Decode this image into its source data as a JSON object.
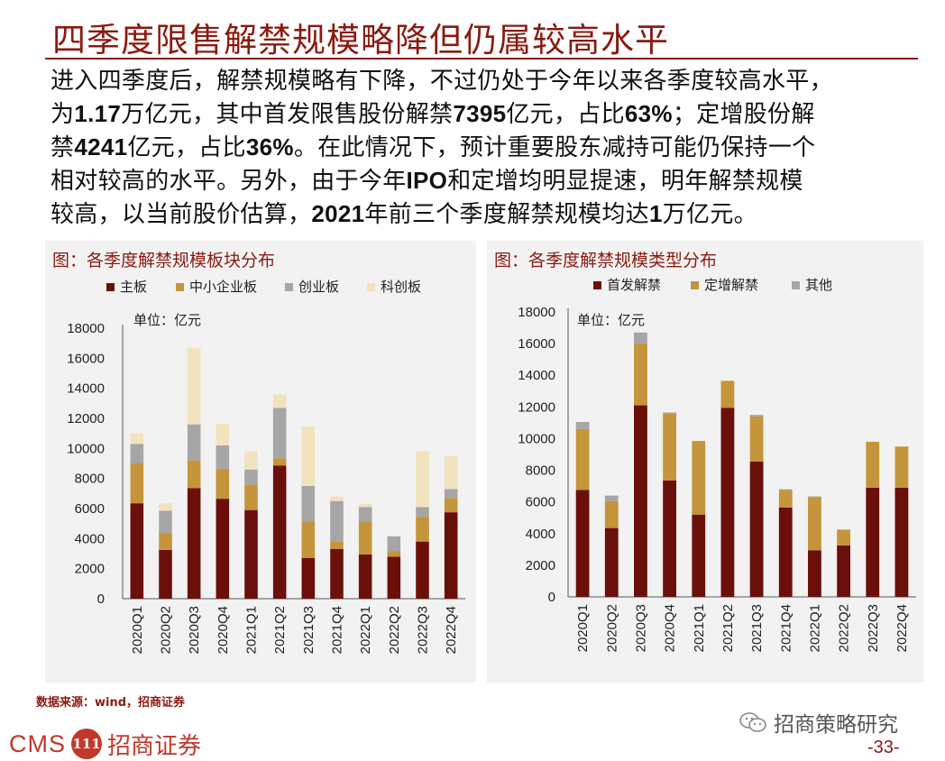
{
  "title": "四季度限售解禁规模略降但仍属较高水平",
  "body": {
    "l1": "进入四季度后，解禁规模略有下降，不过仍处于今年以来各季度较高水平，",
    "l2a": "为",
    "l2b": "1.17",
    "l2c": "万亿元，其中首发限售股份解禁",
    "l2d": "7395",
    "l2e": "亿元，占比",
    "l2f": "63%",
    "l2g": "；定增股份解",
    "l3a": "禁",
    "l3b": "4241",
    "l3c": "亿元，占比",
    "l3d": "36%",
    "l3e": "。在此情况下，预计重要股东减持可能仍保持一个",
    "l4a": "相对较高的水平。另外，由于今年",
    "l4b": "IPO",
    "l4c": "和定增均明显提速，明年解禁规模",
    "l5a": "较高，以当前股价估算，",
    "l5b": "2021",
    "l5c": "年前三个季度解禁规模均达",
    "l5d": "1",
    "l5e": "万亿元。"
  },
  "source": "数据来源：wind，招商证券",
  "logo": {
    "text": "CMS",
    "badge": "111",
    "name": "招商证券"
  },
  "wechat_label": "招商策略研究",
  "page_number": "-33-",
  "colors": {
    "main": "#6b0f0a",
    "sme": "#c4953a",
    "gem": "#a6a6a6",
    "star": "#f1e3be",
    "brand": "#8b1a10"
  },
  "chart_data": [
    {
      "type": "bar",
      "stacked": true,
      "title": "图：各季度解禁规模板块分布",
      "unit_label": "单位：亿元",
      "categories": [
        "2020Q1",
        "2020Q2",
        "2020Q3",
        "2020Q4",
        "2021Q1",
        "2021Q2",
        "2021Q3",
        "2021Q4",
        "2022Q1",
        "2022Q2",
        "2022Q3",
        "2022Q4"
      ],
      "ylim": [
        0,
        18000
      ],
      "yticks": [
        0,
        2000,
        4000,
        6000,
        8000,
        10000,
        12000,
        14000,
        16000,
        18000
      ],
      "series": [
        {
          "name": "主板",
          "color": "#6b0f0a",
          "values": [
            6350,
            3250,
            7350,
            6650,
            5900,
            8850,
            2700,
            3300,
            2950,
            2800,
            3800,
            5750
          ]
        },
        {
          "name": "中小企业板",
          "color": "#c4953a",
          "values": [
            2650,
            1100,
            1850,
            2000,
            1700,
            500,
            2400,
            500,
            2200,
            350,
            1650,
            950
          ]
        },
        {
          "name": "创业板",
          "color": "#a6a6a6",
          "values": [
            1300,
            1500,
            2400,
            1550,
            1000,
            3350,
            2400,
            2700,
            950,
            1000,
            650,
            600
          ]
        },
        {
          "name": "科创板",
          "color": "#f1e3be",
          "values": [
            700,
            500,
            5100,
            1450,
            1200,
            900,
            3950,
            300,
            200,
            50,
            3700,
            2200
          ]
        }
      ]
    },
    {
      "type": "bar",
      "stacked": true,
      "title": "图：各季度解禁规模类型分布",
      "unit_label": "单位：亿元",
      "categories": [
        "2020Q1",
        "2020Q2",
        "2020Q3",
        "2020Q4",
        "2021Q1",
        "2021Q2",
        "2021Q3",
        "2021Q4",
        "2022Q1",
        "2022Q2",
        "2022Q3",
        "2022Q4"
      ],
      "ylim": [
        0,
        18000
      ],
      "yticks": [
        0,
        2000,
        4000,
        6000,
        8000,
        10000,
        12000,
        14000,
        16000,
        18000
      ],
      "series": [
        {
          "name": "首发解禁",
          "color": "#6b0f0a",
          "values": [
            6750,
            4350,
            12100,
            7350,
            5200,
            11950,
            8550,
            5650,
            2950,
            3250,
            6900,
            6900
          ]
        },
        {
          "name": "定增解禁",
          "color": "#c4953a",
          "values": [
            3850,
            1700,
            3900,
            4250,
            4650,
            1700,
            2850,
            1100,
            3350,
            1000,
            2900,
            2600
          ]
        },
        {
          "name": "其他",
          "color": "#a6a6a6",
          "values": [
            450,
            350,
            700,
            50,
            0,
            0,
            100,
            50,
            50,
            0,
            0,
            0
          ]
        }
      ]
    }
  ]
}
